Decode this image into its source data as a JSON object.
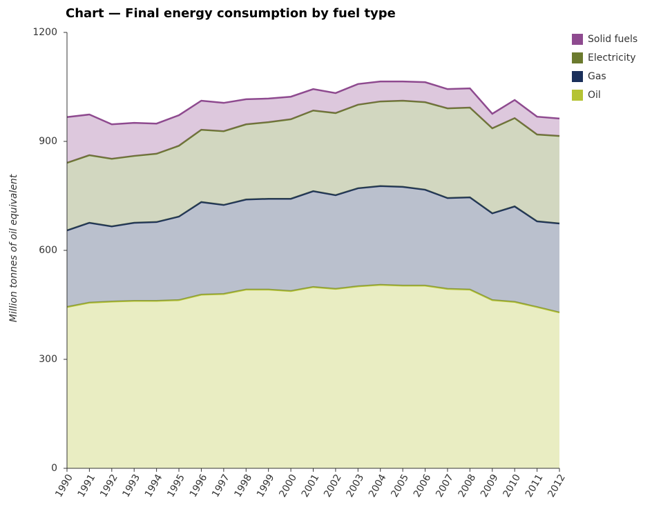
{
  "chart_data": {
    "type": "stacked_area",
    "title": "Chart — Final energy consumption by fuel type",
    "y_label": "Million tonnes of oil equivalent",
    "categories": [
      "1990",
      "1991",
      "1992",
      "1993",
      "1994",
      "1995",
      "1996",
      "1997",
      "1998",
      "1999",
      "2000",
      "2001",
      "2002",
      "2003",
      "2004",
      "2005",
      "2006",
      "2007",
      "2008",
      "2009",
      "2010",
      "2011",
      "2012"
    ],
    "series": [
      {
        "name": "Oil",
        "color": "#b5c334",
        "values": [
          444,
          456,
          459,
          461,
          461,
          463,
          478,
          480,
          492,
          492,
          488,
          499,
          494,
          501,
          505,
          503,
          503,
          494,
          492,
          463,
          458,
          444,
          429
        ]
      },
      {
        "name": "Gas",
        "color": "#1a2f5a",
        "values": [
          211,
          220,
          207,
          215,
          217,
          230,
          255,
          245,
          248,
          250,
          254,
          264,
          258,
          270,
          272,
          272,
          264,
          250,
          254,
          239,
          263,
          236,
          245
        ]
      },
      {
        "name": "Electricity",
        "color": "#6b7a2e",
        "values": [
          186,
          186,
          186,
          184,
          188,
          195,
          199,
          203,
          207,
          211,
          219,
          222,
          226,
          230,
          233,
          237,
          241,
          247,
          247,
          234,
          243,
          239,
          241
        ]
      },
      {
        "name": "Solid fuels",
        "color": "#8e4a8f",
        "values": [
          126,
          112,
          95,
          91,
          83,
          84,
          80,
          78,
          69,
          65,
          62,
          59,
          55,
          57,
          55,
          53,
          55,
          53,
          53,
          40,
          50,
          49,
          48
        ]
      }
    ],
    "ylim": [
      0,
      1200
    ],
    "yticks": [
      0,
      300,
      600,
      900,
      1200
    ],
    "grid": false,
    "legend": "top-right"
  }
}
